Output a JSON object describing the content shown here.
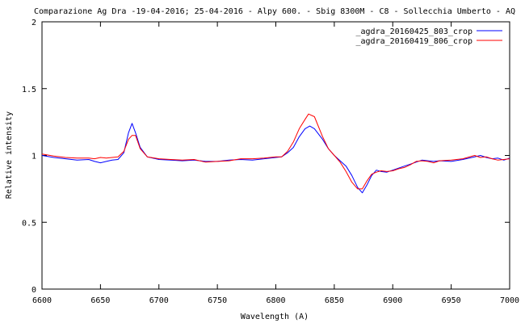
{
  "chart_data": {
    "type": "line",
    "title": "Comparazione Ag Dra -19-04-2016; 25-04-2016 - Alpy 600. - Sbig 8300M -  C8  - Sollecchia Umberto - AQ",
    "xlabel": "Wavelength (A)",
    "ylabel": "Relative intensity",
    "xlim": [
      6600,
      7000
    ],
    "ylim": [
      0,
      2
    ],
    "x_ticks": [
      6600,
      6650,
      6700,
      6750,
      6800,
      6850,
      6900,
      6950,
      7000
    ],
    "x_tick_labels": [
      "6600",
      "6650",
      "6700",
      "6750",
      "6800",
      "6850",
      "6900",
      "6950",
      "7000"
    ],
    "y_ticks": [
      0,
      0.5,
      1,
      1.5,
      2
    ],
    "y_tick_labels": [
      "0",
      "0.5",
      "1",
      "1.5",
      "2"
    ],
    "grid": false,
    "legend_position": "top-right",
    "series": [
      {
        "name": "_agdra_20160425_803_crop",
        "color": "#0000ff",
        "points": [
          [
            6600,
            1.0
          ],
          [
            6610,
            0.985
          ],
          [
            6620,
            0.975
          ],
          [
            6630,
            0.965
          ],
          [
            6640,
            0.97
          ],
          [
            6645,
            0.955
          ],
          [
            6650,
            0.945
          ],
          [
            6655,
            0.955
          ],
          [
            6660,
            0.965
          ],
          [
            6665,
            0.97
          ],
          [
            6670,
            1.02
          ],
          [
            6674,
            1.17
          ],
          [
            6677,
            1.24
          ],
          [
            6680,
            1.17
          ],
          [
            6684,
            1.06
          ],
          [
            6690,
            0.99
          ],
          [
            6700,
            0.97
          ],
          [
            6710,
            0.965
          ],
          [
            6720,
            0.96
          ],
          [
            6730,
            0.965
          ],
          [
            6740,
            0.955
          ],
          [
            6750,
            0.955
          ],
          [
            6760,
            0.965
          ],
          [
            6770,
            0.97
          ],
          [
            6780,
            0.965
          ],
          [
            6790,
            0.975
          ],
          [
            6800,
            0.985
          ],
          [
            6805,
            0.99
          ],
          [
            6810,
            1.02
          ],
          [
            6815,
            1.06
          ],
          [
            6820,
            1.14
          ],
          [
            6825,
            1.2
          ],
          [
            6829,
            1.22
          ],
          [
            6833,
            1.2
          ],
          [
            6840,
            1.12
          ],
          [
            6845,
            1.05
          ],
          [
            6850,
            1.0
          ],
          [
            6855,
            0.96
          ],
          [
            6860,
            0.92
          ],
          [
            6865,
            0.85
          ],
          [
            6870,
            0.76
          ],
          [
            6874,
            0.72
          ],
          [
            6878,
            0.78
          ],
          [
            6882,
            0.85
          ],
          [
            6886,
            0.89
          ],
          [
            6890,
            0.88
          ],
          [
            6895,
            0.875
          ],
          [
            6900,
            0.89
          ],
          [
            6905,
            0.905
          ],
          [
            6910,
            0.92
          ],
          [
            6915,
            0.935
          ],
          [
            6920,
            0.95
          ],
          [
            6925,
            0.965
          ],
          [
            6930,
            0.96
          ],
          [
            6935,
            0.955
          ],
          [
            6940,
            0.96
          ],
          [
            6950,
            0.955
          ],
          [
            6960,
            0.97
          ],
          [
            6970,
            0.99
          ],
          [
            6975,
            1.0
          ],
          [
            6980,
            0.985
          ],
          [
            6985,
            0.975
          ],
          [
            6990,
            0.98
          ],
          [
            6995,
            0.965
          ],
          [
            7000,
            0.98
          ]
        ]
      },
      {
        "name": "_agdra_20160419_806_crop",
        "color": "#ff0000",
        "points": [
          [
            6600,
            1.01
          ],
          [
            6610,
            0.995
          ],
          [
            6620,
            0.985
          ],
          [
            6630,
            0.98
          ],
          [
            6640,
            0.98
          ],
          [
            6645,
            0.975
          ],
          [
            6650,
            0.985
          ],
          [
            6655,
            0.98
          ],
          [
            6660,
            0.985
          ],
          [
            6665,
            0.99
          ],
          [
            6670,
            1.03
          ],
          [
            6674,
            1.12
          ],
          [
            6677,
            1.15
          ],
          [
            6680,
            1.15
          ],
          [
            6684,
            1.05
          ],
          [
            6690,
            0.99
          ],
          [
            6700,
            0.975
          ],
          [
            6710,
            0.97
          ],
          [
            6720,
            0.965
          ],
          [
            6730,
            0.97
          ],
          [
            6740,
            0.95
          ],
          [
            6750,
            0.955
          ],
          [
            6760,
            0.96
          ],
          [
            6770,
            0.975
          ],
          [
            6780,
            0.975
          ],
          [
            6790,
            0.98
          ],
          [
            6800,
            0.99
          ],
          [
            6805,
            0.99
          ],
          [
            6810,
            1.03
          ],
          [
            6815,
            1.1
          ],
          [
            6820,
            1.2
          ],
          [
            6825,
            1.27
          ],
          [
            6828,
            1.31
          ],
          [
            6833,
            1.29
          ],
          [
            6840,
            1.14
          ],
          [
            6845,
            1.05
          ],
          [
            6850,
            1.0
          ],
          [
            6855,
            0.95
          ],
          [
            6860,
            0.88
          ],
          [
            6865,
            0.8
          ],
          [
            6870,
            0.75
          ],
          [
            6874,
            0.75
          ],
          [
            6878,
            0.81
          ],
          [
            6882,
            0.86
          ],
          [
            6886,
            0.875
          ],
          [
            6890,
            0.885
          ],
          [
            6895,
            0.88
          ],
          [
            6900,
            0.885
          ],
          [
            6905,
            0.9
          ],
          [
            6910,
            0.91
          ],
          [
            6915,
            0.93
          ],
          [
            6920,
            0.955
          ],
          [
            6925,
            0.96
          ],
          [
            6930,
            0.955
          ],
          [
            6935,
            0.945
          ],
          [
            6940,
            0.96
          ],
          [
            6950,
            0.965
          ],
          [
            6960,
            0.975
          ],
          [
            6970,
            1.0
          ],
          [
            6975,
            0.985
          ],
          [
            6980,
            0.99
          ],
          [
            6985,
            0.975
          ],
          [
            6990,
            0.965
          ],
          [
            6995,
            0.97
          ],
          [
            7000,
            0.975
          ]
        ]
      }
    ]
  }
}
